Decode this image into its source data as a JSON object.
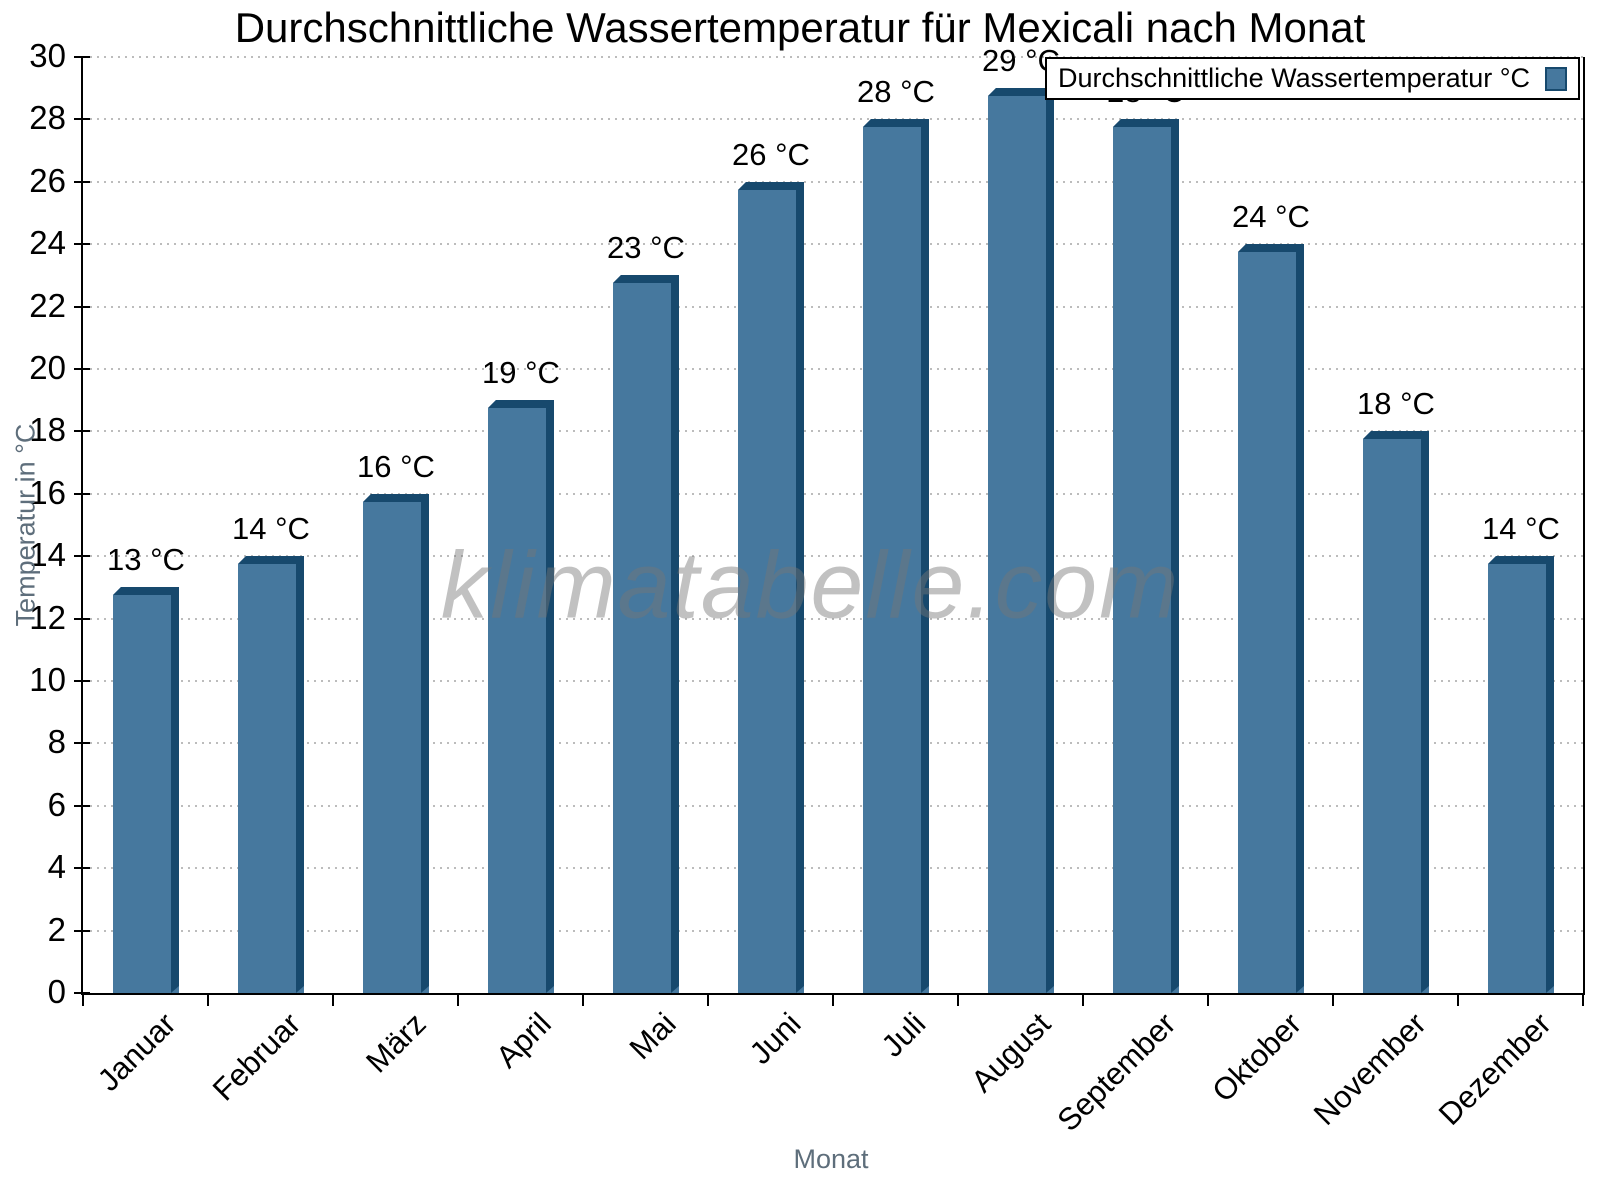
{
  "watermark": "klimatabelle.com",
  "chart_data": {
    "type": "bar",
    "title": "Durchschnittliche Wassertemperatur für Mexicali nach Monat",
    "categories": [
      "Januar",
      "Februar",
      "März",
      "April",
      "Mai",
      "Juni",
      "Juli",
      "August",
      "September",
      "Oktober",
      "November",
      "Dezember"
    ],
    "series": [
      {
        "name": "Durchschnittliche Wassertemperatur °C",
        "values": [
          13,
          14,
          16,
          19,
          23,
          26,
          28,
          29,
          28,
          24,
          18,
          14
        ]
      }
    ],
    "unit": "°C",
    "data_labels": [
      "13 °C",
      "14 °C",
      "16 °C",
      "19 °C",
      "23 °C",
      "26 °C",
      "28 °C",
      "29 °C",
      "28 °C",
      "24 °C",
      "18 °C",
      "14 °C"
    ],
    "xlabel": "Monat",
    "ylabel": "Temperatur in °C",
    "ylim": [
      0,
      30
    ],
    "ytick_step": 2,
    "grid": "horizontal-dotted",
    "legend_position": "top-right",
    "colors": {
      "bar": "#46789E",
      "bar_edge": "#17496D",
      "grid": "#BCBCBC",
      "axis": "#000000",
      "axis_title": "#5E6E7B",
      "watermark_gray": "#C4C4C4"
    }
  }
}
